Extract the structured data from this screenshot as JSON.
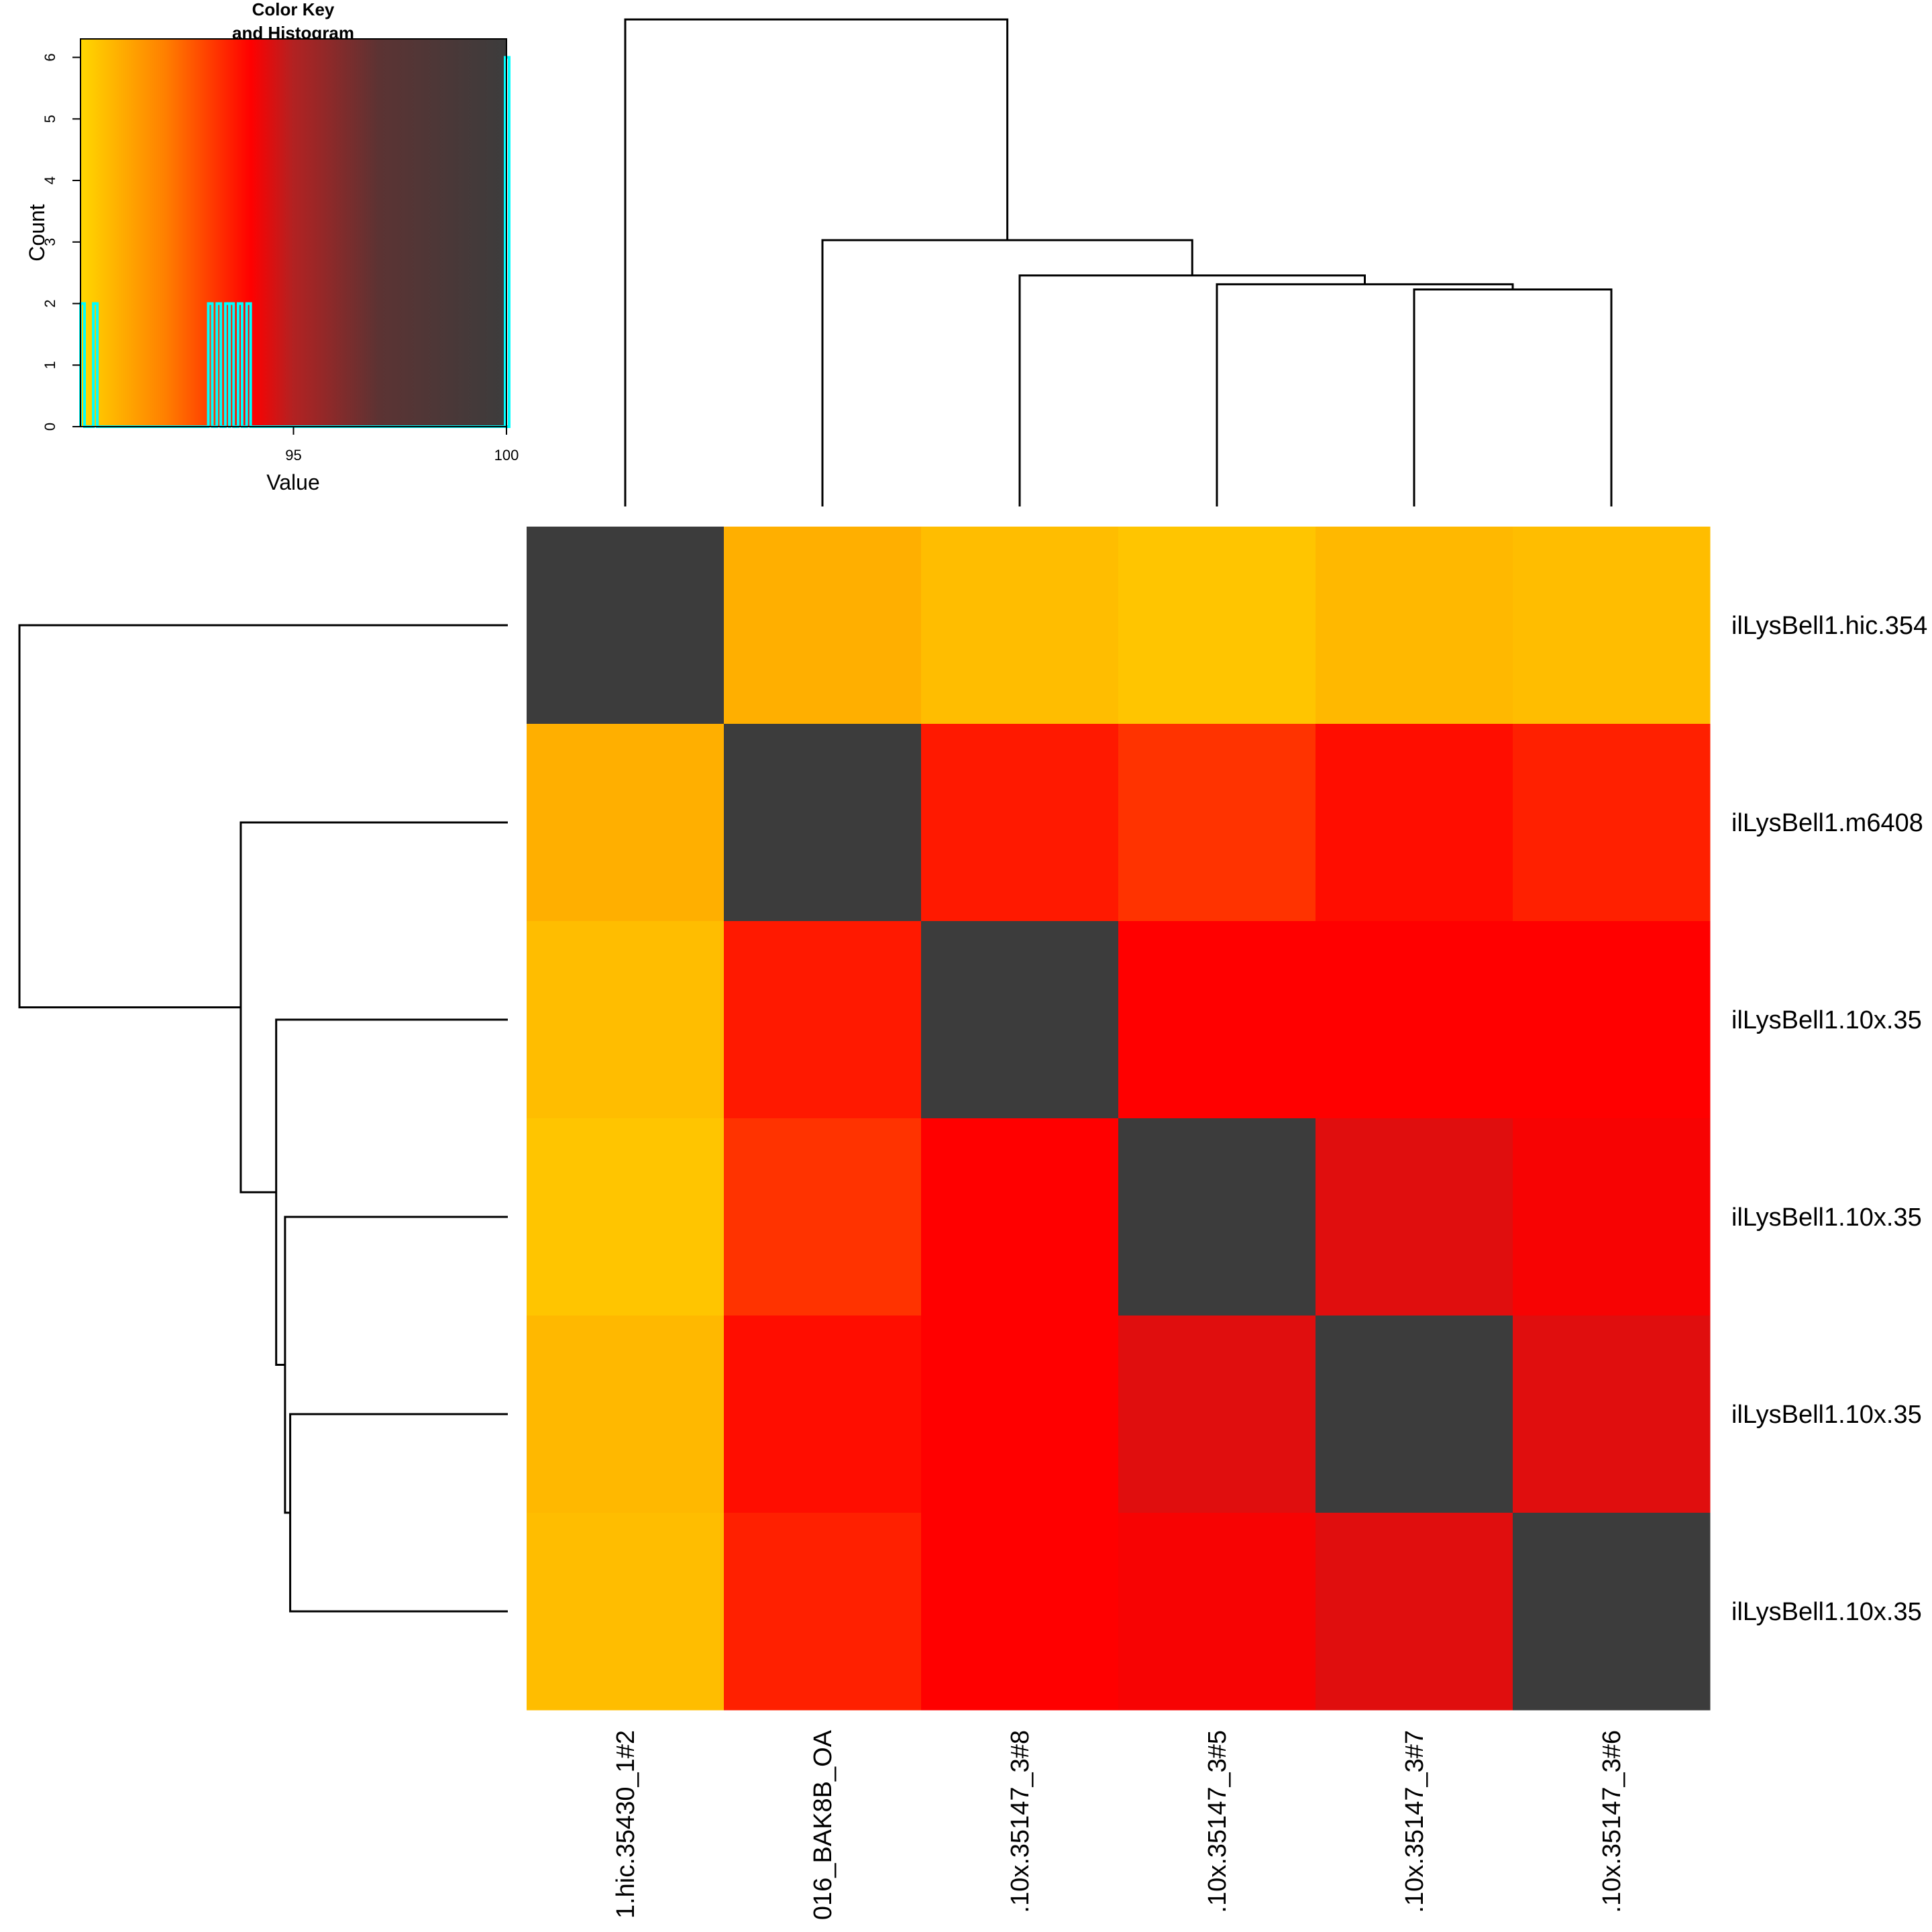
{
  "chart_data": {
    "type": "heatmap",
    "rows": [
      "ilLysBell1.hic.354",
      "ilLysBell1.m6408",
      "ilLysBell1.10x.35",
      "ilLysBell1.10x.35",
      "ilLysBell1.10x.35",
      "ilLysBell1.10x.35"
    ],
    "columns": [
      "1.hic.35430_1#2",
      "016_BAK8B_OA",
      ".10x.35147_3#8",
      ".10x.35147_3#5",
      ".10x.35147_3#7",
      ".10x.35147_3#6"
    ],
    "values": [
      [
        100,
        90.9,
        90.6,
        90.4,
        90.7,
        90.6
      ],
      [
        90.9,
        100,
        93.6,
        93.2,
        93.8,
        93.5
      ],
      [
        90.6,
        93.6,
        100,
        94.0,
        94.0,
        94.0
      ],
      [
        90.4,
        93.2,
        94.0,
        100,
        94.4,
        94.1
      ],
      [
        90.7,
        93.8,
        94.0,
        94.4,
        100,
        94.4
      ],
      [
        90.6,
        93.5,
        94.0,
        94.1,
        94.4,
        100
      ]
    ],
    "color_scale": {
      "stops": [
        {
          "value": 90.0,
          "color": "#ffd700"
        },
        {
          "value": 92.0,
          "color": "#ff7f00"
        },
        {
          "value": 94.0,
          "color": "#ff0000"
        },
        {
          "value": 95.0,
          "color": "#b22222"
        },
        {
          "value": 97.0,
          "color": "#5c3333"
        },
        {
          "value": 100.0,
          "color": "#3c3c3c"
        }
      ],
      "self_match_color": "#3c3c3c"
    },
    "color_key": {
      "title_line1": "Color Key",
      "title_line2": "and Histogram",
      "xlabel": "Value",
      "ylabel": "Count",
      "xlim": [
        90.0,
        100.0
      ],
      "ylim": [
        0,
        6.3
      ],
      "xticks": [
        "95",
        "100"
      ],
      "yticks": [
        "0",
        "1",
        "2",
        "3",
        "4",
        "5",
        "6"
      ],
      "histogram": [
        {
          "x": 90.0,
          "count": 2
        },
        {
          "x": 90.3,
          "count": 2
        },
        {
          "x": 93.0,
          "count": 2
        },
        {
          "x": 93.2,
          "count": 2
        },
        {
          "x": 93.4,
          "count": 2
        },
        {
          "x": 93.5,
          "count": 2
        },
        {
          "x": 93.7,
          "count": 2
        },
        {
          "x": 93.9,
          "count": 2
        },
        {
          "x": 100.0,
          "count": 6
        }
      ],
      "histogram_color": "#00ffff"
    },
    "col_dendrogram": {
      "merges": [
        {
          "children": [
            4,
            5
          ],
          "height": 2.95
        },
        {
          "children": [
            3,
            "m0"
          ],
          "height": 3.02
        },
        {
          "children": [
            2,
            "m1"
          ],
          "height": 3.14
        },
        {
          "children": [
            1,
            "m2"
          ],
          "height": 3.62
        },
        {
          "children": [
            0,
            "m3"
          ],
          "height": 6.62
        }
      ]
    },
    "row_dendrogram": {
      "merges": [
        {
          "children": [
            4,
            5
          ],
          "height": 2.95
        },
        {
          "children": [
            3,
            "m0"
          ],
          "height": 3.02
        },
        {
          "children": [
            2,
            "m1"
          ],
          "height": 3.14
        },
        {
          "children": [
            1,
            "m2"
          ],
          "height": 3.62
        },
        {
          "children": [
            0,
            "m3"
          ],
          "height": 6.62
        }
      ]
    }
  }
}
